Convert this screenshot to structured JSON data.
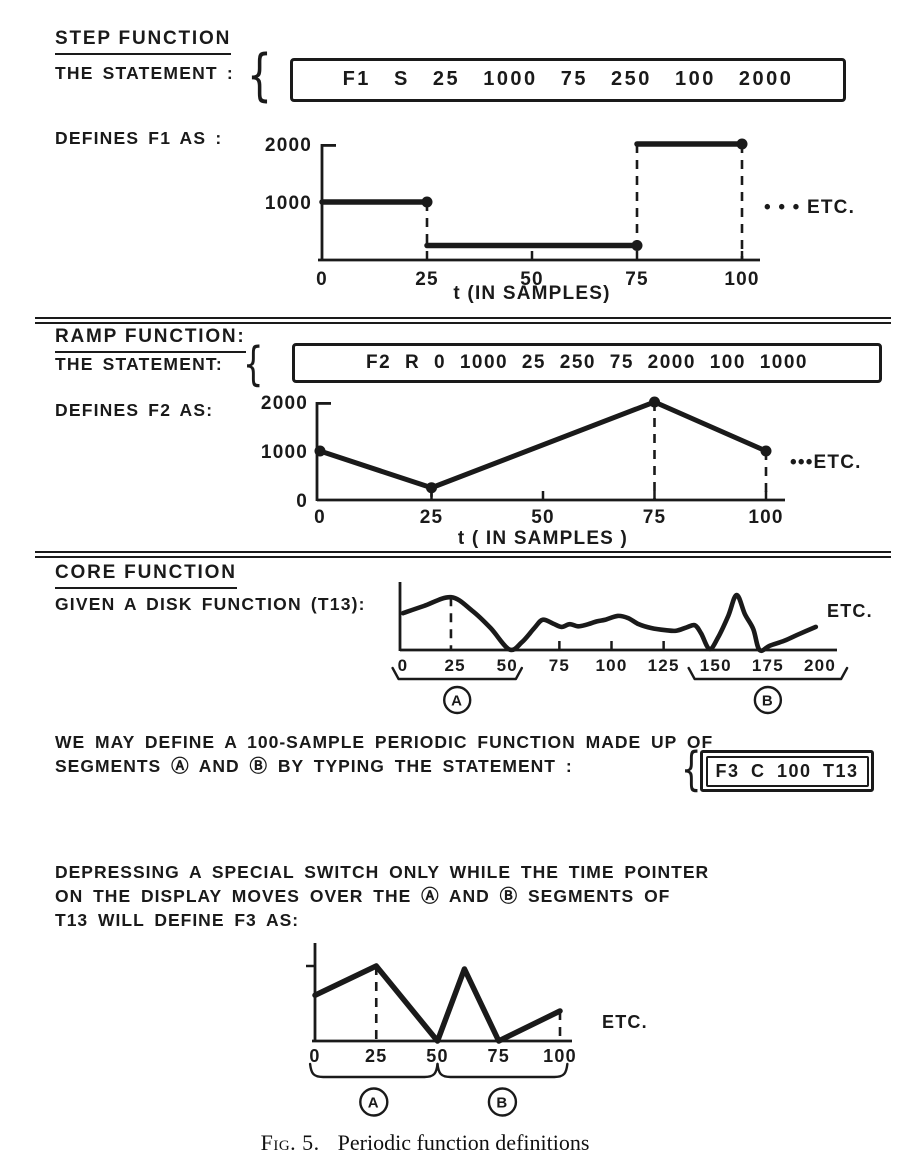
{
  "page": {
    "bg": "#ffffff",
    "ink": "#1a1a1a"
  },
  "sections": {
    "step": {
      "heading": "STEP FUNCTION",
      "statement_label": "THE STATEMENT :",
      "brace": "{",
      "statement": "F1 S 25 1000 75 250 100 2000",
      "defines_label": "DEFINES F1 AS :"
    },
    "ramp": {
      "heading": "RAMP FUNCTION:",
      "statement_label": "THE STATEMENT:",
      "brace": "{",
      "statement": "F2 R 0 1000 25 250 75 2000 100 1000",
      "defines_label": "DEFINES F2 AS:"
    },
    "core": {
      "heading": "CORE FUNCTION",
      "given_label": "GIVEN A DISK FUNCTION (T13):"
    },
    "periodic_text": {
      "line1": "WE MAY DEFINE A 100-SAMPLE PERIODIC FUNCTION MADE UP OF",
      "line2": "SEGMENTS Ⓐ AND Ⓑ BY TYPING THE STATEMENT :",
      "brace": "{",
      "statement": "F3 C 100 T13"
    },
    "switch_text": {
      "line1": "DEPRESSING A SPECIAL SWITCH ONLY WHILE THE TIME POINTER",
      "line2": "ON THE DISPLAY MOVES OVER THE Ⓐ AND Ⓑ SEGMENTS OF",
      "line3": "T13 WILL DEFINE F3 AS:"
    }
  },
  "caption": {
    "fig": "Fig. 5.",
    "text": "Periodic function definitions"
  },
  "chart_data": [
    {
      "id": "step",
      "type": "step",
      "title": "F1 defined as a step function",
      "xlim": [
        0,
        100
      ],
      "ylim": [
        0,
        2000
      ],
      "segments": [
        {
          "from": 0,
          "to": 25,
          "value": 1000
        },
        {
          "from": 25,
          "to": 75,
          "value": 250
        },
        {
          "from": 75,
          "to": 100,
          "value": 2000
        }
      ],
      "dots": [
        [
          25,
          1000
        ],
        [
          75,
          250
        ],
        [
          100,
          2000
        ]
      ],
      "dashed": [
        {
          "x": 25,
          "from": 1000,
          "to": 250
        },
        {
          "x": 75,
          "from": 2000,
          "to": 250
        },
        {
          "x": 100,
          "from": 2000,
          "to": 0
        }
      ],
      "xticks": [
        0,
        25,
        50,
        75,
        100
      ],
      "yticks": [
        2000,
        1000
      ],
      "xlabel": "t (IN SAMPLES)",
      "etc_label": "• • • ETC."
    },
    {
      "id": "ramp",
      "type": "line",
      "title": "F2 defined as a ramp function",
      "xlim": [
        0,
        100
      ],
      "ylim": [
        0,
        2000
      ],
      "points": [
        [
          0,
          1000
        ],
        [
          25,
          250
        ],
        [
          75,
          2000
        ],
        [
          100,
          1000
        ]
      ],
      "dots": [
        [
          0,
          1000
        ],
        [
          25,
          250
        ],
        [
          75,
          2000
        ],
        [
          100,
          1000
        ]
      ],
      "dashed": [
        {
          "x": 25,
          "from": 250,
          "to": 0
        },
        {
          "x": 75,
          "from": 2000,
          "to": 0
        },
        {
          "x": 100,
          "from": 1000,
          "to": 0
        }
      ],
      "xticks": [
        0,
        25,
        50,
        75,
        100
      ],
      "yticks": [
        2000,
        1000,
        0
      ],
      "xlabel": "t ( IN SAMPLES )",
      "etc_label": "•••ETC."
    },
    {
      "id": "disk",
      "type": "smooth",
      "title": "Disk function T13",
      "xlim": [
        0,
        200
      ],
      "ylim": [
        0,
        100
      ],
      "y_units": "unlabeled",
      "points": [
        [
          0,
          67
        ],
        [
          10,
          80
        ],
        [
          23,
          96
        ],
        [
          33,
          72
        ],
        [
          42,
          40
        ],
        [
          51,
          1
        ],
        [
          57,
          14
        ],
        [
          63,
          40
        ],
        [
          67,
          55
        ],
        [
          72,
          48
        ],
        [
          76,
          42
        ],
        [
          80,
          47
        ],
        [
          84,
          43
        ],
        [
          88,
          46
        ],
        [
          93,
          52
        ],
        [
          97,
          55
        ],
        [
          103,
          62
        ],
        [
          108,
          58
        ],
        [
          113,
          47
        ],
        [
          119,
          40
        ],
        [
          126,
          36
        ],
        [
          131,
          35
        ],
        [
          136,
          41
        ],
        [
          140,
          45
        ],
        [
          143,
          30
        ],
        [
          147,
          2
        ],
        [
          151,
          22
        ],
        [
          156,
          62
        ],
        [
          160,
          100
        ],
        [
          164,
          65
        ],
        [
          168,
          38
        ],
        [
          171,
          0
        ],
        [
          176,
          8
        ],
        [
          183,
          17
        ],
        [
          190,
          29
        ],
        [
          198,
          42
        ]
      ],
      "dashed": [
        {
          "x": 23,
          "from": 96,
          "to": 0
        }
      ],
      "xticks": [
        0,
        25,
        50,
        75,
        100,
        125,
        150,
        175,
        200
      ],
      "axis_ticks": [
        75,
        100,
        125
      ],
      "braces": [
        {
          "from": -5,
          "to": 57,
          "label": "A"
        },
        {
          "from": 137,
          "to": 213,
          "label": "B"
        }
      ],
      "etc_label": "ETC."
    },
    {
      "id": "f3",
      "type": "line",
      "title": "F3 defined from segments A and B of T13",
      "xlim": [
        0,
        100
      ],
      "ylim": [
        0,
        100
      ],
      "y_units": "unlabeled",
      "points": [
        [
          0,
          61
        ],
        [
          25,
          100
        ],
        [
          50,
          0
        ],
        [
          61,
          96
        ],
        [
          75,
          0
        ],
        [
          100,
          40
        ]
      ],
      "dashed": [
        {
          "x": 25,
          "from": 100,
          "to": 0
        },
        {
          "x": 100,
          "from": 40,
          "to": 0
        }
      ],
      "xticks": [
        0,
        25,
        50,
        75,
        100
      ],
      "braces": [
        {
          "from": -2,
          "to": 50,
          "label": "A"
        },
        {
          "from": 50,
          "to": 103,
          "label": "B"
        }
      ],
      "etc_label": "ETC."
    }
  ]
}
